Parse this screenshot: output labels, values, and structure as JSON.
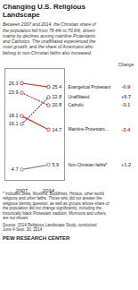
{
  "chart_data": {
    "type": "line",
    "title": "Changing U.S. Religious\nLandscape",
    "subtitle": "Between 2007 and 2014, the Christian share of\nthe population fell from 78.4% to 70.6%, driven\nmainly by declines among mainline Protestants\nand Catholics. The unaffiliated experienced the\nmost growth, and the share of Americans who\nbelong to non-Christian faiths also increased.",
    "categories": [
      "2007",
      "2014"
    ],
    "series": [
      {
        "name": "Evangelical Protestant",
        "color": "#c0392b",
        "line_style": "solid",
        "marker": "circle",
        "values": [
          26.3,
          25.4
        ],
        "change": "-0.9"
      },
      {
        "name": "Unaffiliated",
        "color": "#5a5a8a",
        "line_style": "dotted",
        "marker": "circle",
        "values": [
          16.1,
          22.8
        ],
        "change": "+6.7"
      },
      {
        "name": "Catholic",
        "color": "#c0392b",
        "line_style": "dotted",
        "marker": "circle",
        "values": [
          23.9,
          20.8
        ],
        "change": "-3.1"
      },
      {
        "name": "Mainline Protestant....",
        "color": "#c0392b",
        "line_style": "solid",
        "marker": "circle",
        "values": [
          18.1,
          14.7
        ],
        "change": "-3.4"
      },
      {
        "name": "Non-Christian faiths*",
        "color": "#888888",
        "line_style": "solid",
        "marker": "circle",
        "values": [
          4.7,
          5.9
        ],
        "change": "+1.2"
      }
    ],
    "change_label": "Change",
    "ylim": [
      2,
      30
    ],
    "yticks": [],
    "tick_labels": "x",
    "data_labels": true,
    "grid": false,
    "footnote": [
      "* Includes Jews, Muslims, Buddhists, Hindus, other world",
      "religions and other faiths. Those who did not answer the",
      "religious identity question, as well as groups whose share of",
      "the population did not change significantly, including the",
      "historically black Protestant tradition, Mormons and others,",
      "are not shown."
    ],
    "source": [
      "Source: 2014 Religious Landscape Study, conducted",
      "June 4-Sept. 30, 2014"
    ],
    "institution": "PEW RESEARCH CENTER"
  }
}
